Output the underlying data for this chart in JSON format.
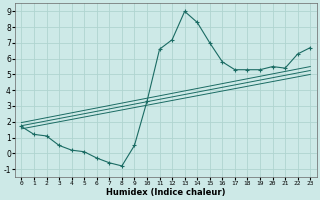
{
  "xlabel": "Humidex (Indice chaleur)",
  "ylabel": "",
  "xlim": [
    -0.5,
    23.5
  ],
  "ylim": [
    -1.5,
    9.5
  ],
  "xticks": [
    0,
    1,
    2,
    3,
    4,
    5,
    6,
    7,
    8,
    9,
    10,
    11,
    12,
    13,
    14,
    15,
    16,
    17,
    18,
    19,
    20,
    21,
    22,
    23
  ],
  "yticks": [
    -1,
    0,
    1,
    2,
    3,
    4,
    5,
    6,
    7,
    8,
    9
  ],
  "bg_color": "#cde9e7",
  "grid_color": "#b0d4d0",
  "line_color": "#1a6b63",
  "curve1_x": [
    0,
    1,
    2,
    3,
    4,
    5,
    6,
    7,
    8,
    9,
    10,
    11,
    12,
    13,
    14,
    15,
    16,
    17,
    18,
    19,
    20,
    21,
    22,
    23
  ],
  "curve1_y": [
    1.7,
    1.2,
    1.1,
    0.5,
    0.2,
    0.1,
    -0.3,
    -0.6,
    -0.8,
    0.5,
    3.3,
    6.6,
    7.2,
    9.0,
    8.3,
    7.0,
    5.8,
    5.3,
    5.3,
    5.3,
    5.5,
    5.4,
    6.3,
    6.7
  ],
  "line1_x": [
    0,
    23
  ],
  "line1_y": [
    1.55,
    5.0
  ],
  "line2_x": [
    0,
    23
  ],
  "line2_y": [
    1.75,
    5.25
  ],
  "line3_x": [
    0,
    23
  ],
  "line3_y": [
    1.95,
    5.5
  ]
}
